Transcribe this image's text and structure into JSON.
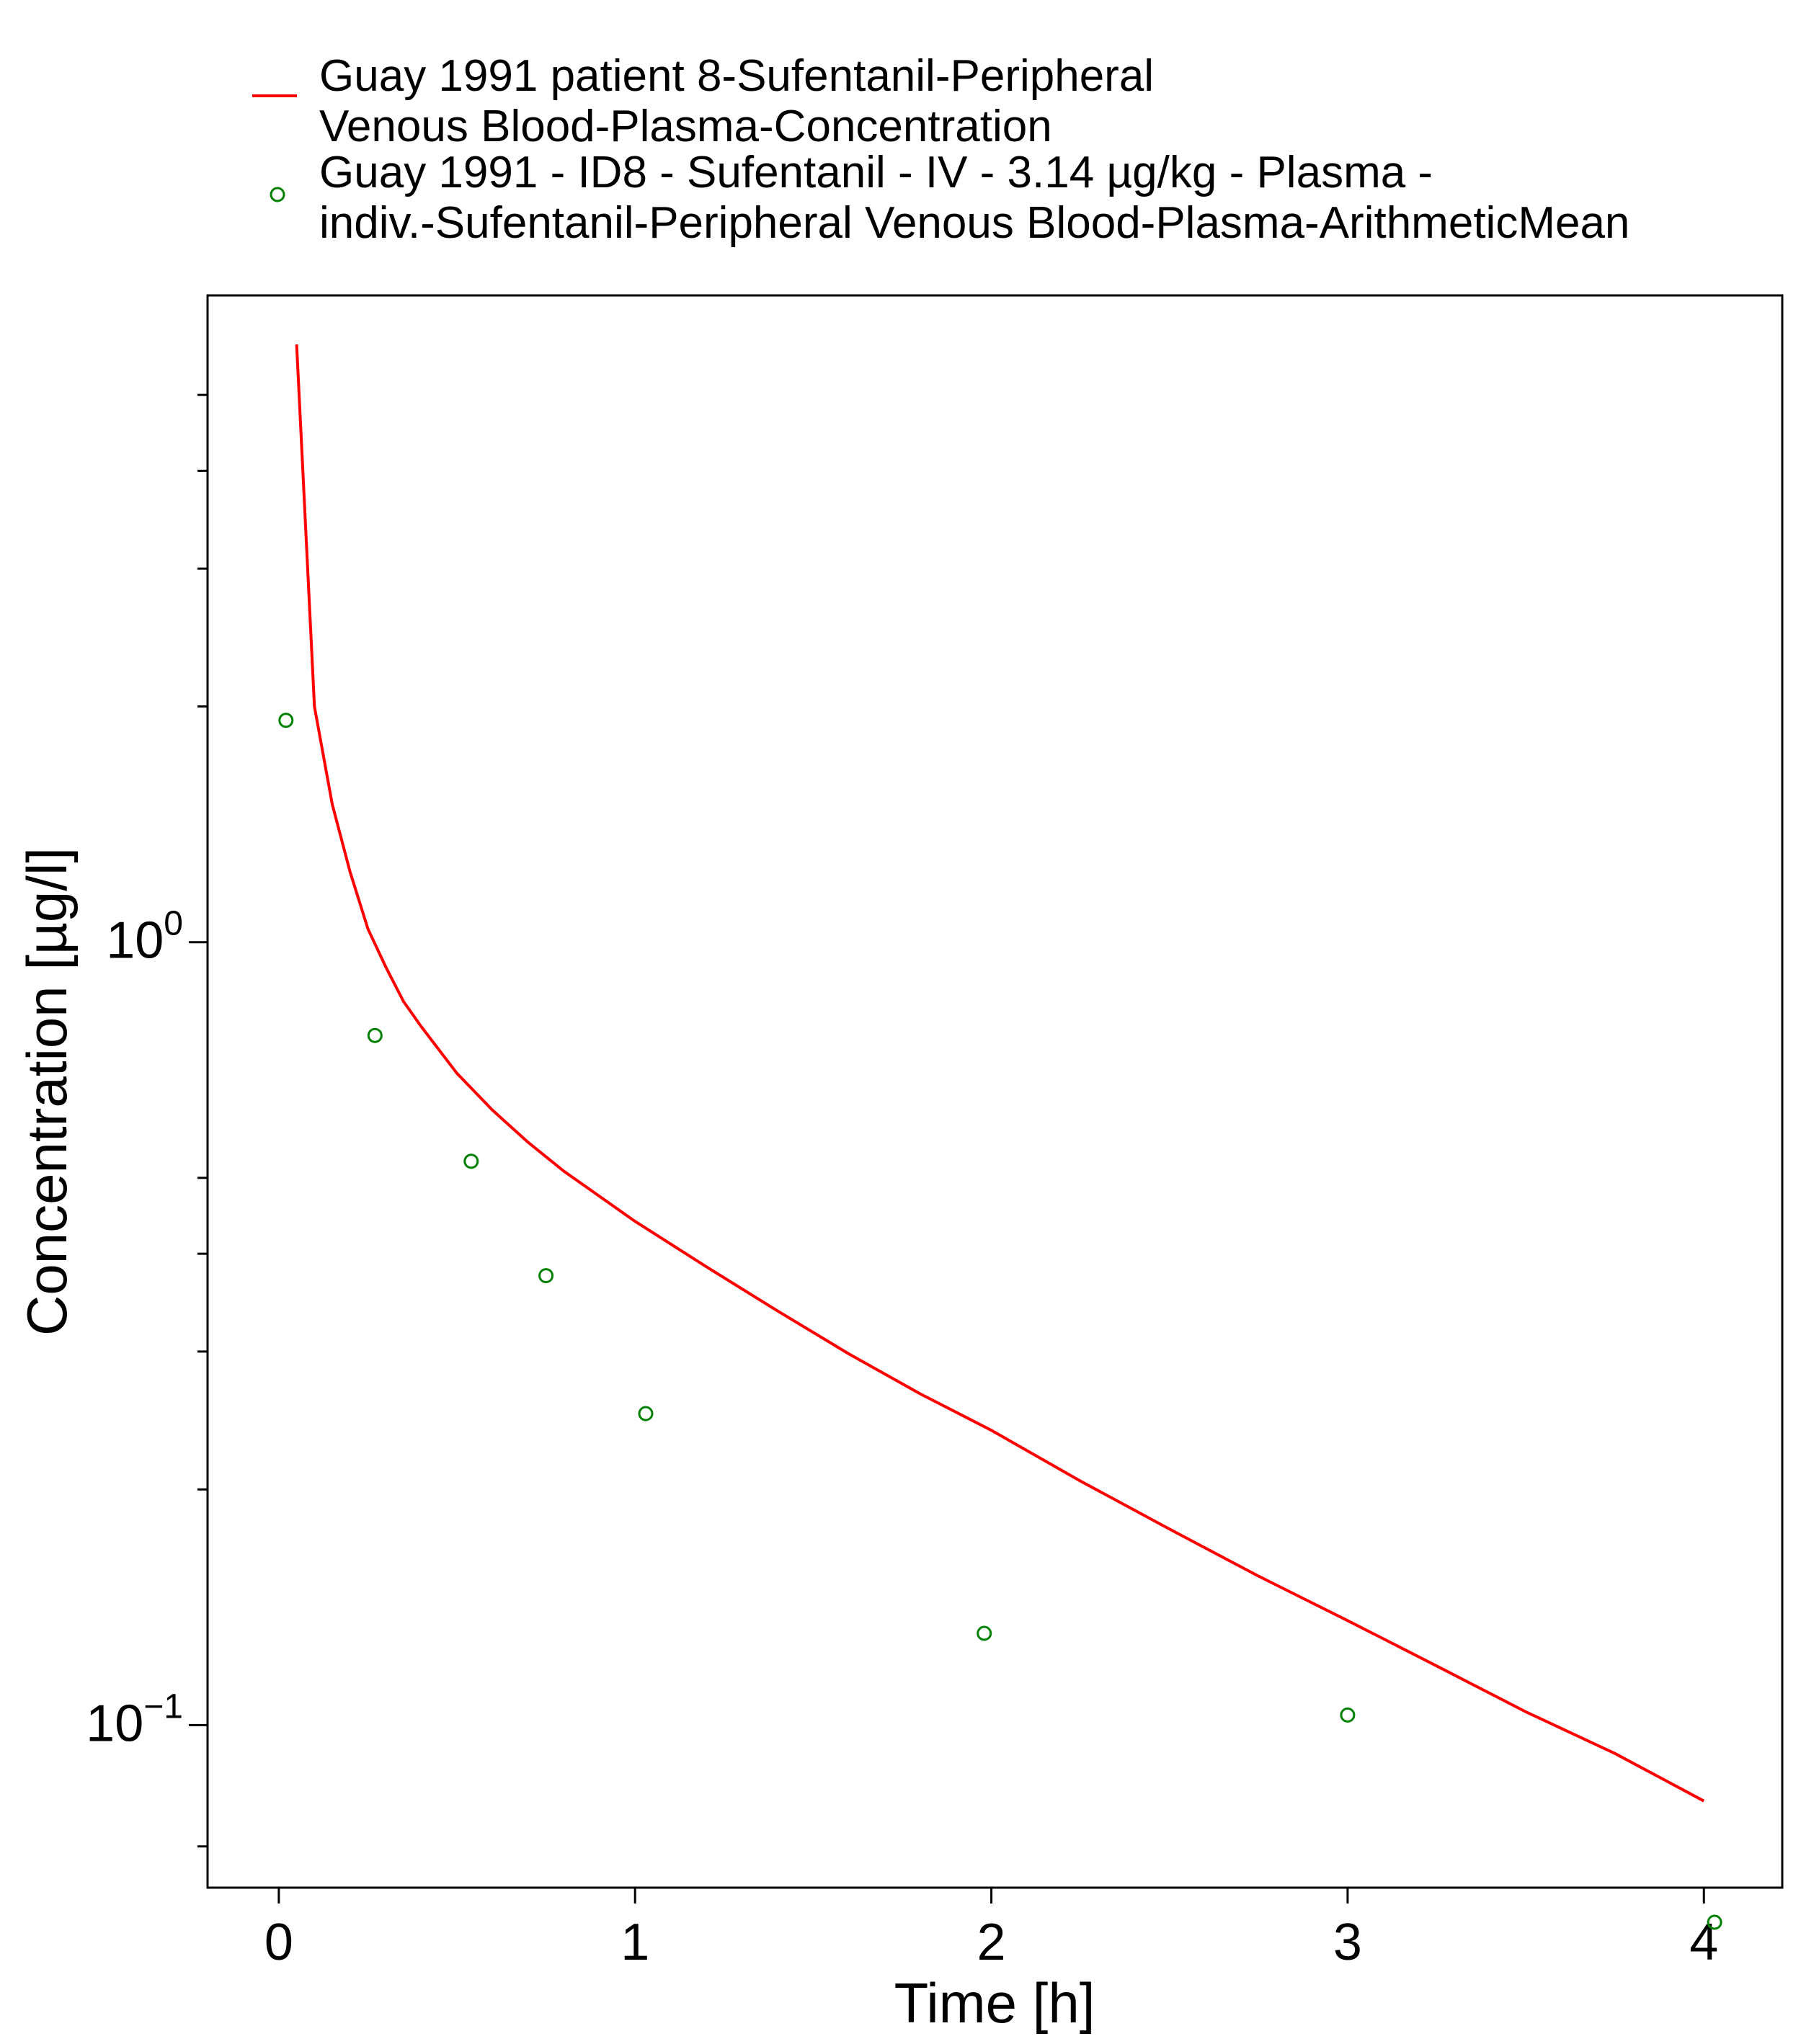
{
  "chart_data": {
    "type": "line",
    "title": "",
    "xlabel": "Time [h]",
    "ylabel": "Concentration [µg/l]",
    "xlim": [
      -0.2,
      4.22
    ],
    "ylim": [
      0.062,
      6.7
    ],
    "yscale": "log",
    "grid": false,
    "legend_position": "top",
    "x_ticks": [
      {
        "value": 0,
        "label": "0"
      },
      {
        "value": 1,
        "label": "1"
      },
      {
        "value": 2,
        "label": "2"
      },
      {
        "value": 3,
        "label": "3"
      },
      {
        "value": 4,
        "label": "4"
      }
    ],
    "y_major_ticks": [
      {
        "value": 1,
        "base": "10",
        "exp": "0"
      },
      {
        "value": 0.1,
        "base": "10",
        "exp": "−1"
      }
    ],
    "y_minor_ticks": [
      5,
      4,
      3,
      2,
      0.5,
      0.4,
      0.3,
      0.2,
      0.07
    ],
    "series": [
      {
        "name": "Guay 1991 patient 8-Sufentanil-Peripheral Venous Blood-Plasma-Concentration",
        "legend_lines": [
          "Guay 1991 patient 8-Sufentanil-Peripheral",
          "Venous Blood-Plasma-Concentration"
        ],
        "kind": "line",
        "color": "#ff0000",
        "x": [
          0.05,
          0.1,
          0.15,
          0.2,
          0.25,
          0.3,
          0.35,
          0.4,
          0.5,
          0.6,
          0.7,
          0.8,
          1.0,
          1.2,
          1.4,
          1.6,
          1.8,
          2.0,
          2.25,
          2.5,
          2.75,
          3.0,
          3.25,
          3.5,
          3.75,
          4.0
        ],
        "y": [
          5.8,
          2.0,
          1.5,
          1.23,
          1.04,
          0.93,
          0.84,
          0.78,
          0.68,
          0.61,
          0.555,
          0.51,
          0.44,
          0.385,
          0.338,
          0.298,
          0.265,
          0.238,
          0.205,
          0.178,
          0.155,
          0.136,
          0.119,
          0.104,
          0.092,
          0.08
        ]
      },
      {
        "name": "Guay 1991 - ID8 - Sufentanil - IV - 3.14 µg/kg - Plasma - indiv.-Sufentanil-Peripheral Venous Blood-Plasma-ArithmeticMean",
        "legend_lines": [
          "Guay 1991 - ID8 - Sufentanil - IV - 3.14 µg/kg - Plasma -",
          "indiv.-Sufentanil-Peripheral Venous Blood-Plasma-ArithmeticMean"
        ],
        "kind": "scatter",
        "marker": "open-circle",
        "color": "#008000",
        "x": [
          0.02,
          0.27,
          0.54,
          0.75,
          1.03,
          1.98,
          3.0,
          4.03
        ],
        "y": [
          1.92,
          0.76,
          0.525,
          0.375,
          0.25,
          0.131,
          0.103,
          0.056
        ]
      }
    ]
  }
}
